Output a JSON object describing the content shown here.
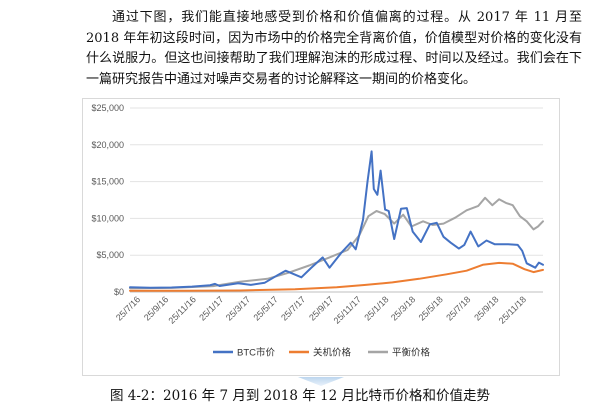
{
  "document": {
    "paragraph": "通过下图，我们能直接地感受到价格和价值偏离的过程。从 2017 年 11 月至 2018 年年初这段时间，因为市场中的价格完全背离价值，价值模型对价格的变化没有什么说服力。但这也间接帮助了我们理解泡沫的形成过程、时间以及经过。我们会在下一篇研究报告中通过对噪声交易者的讨论解释这一期间的价格变化。",
    "caption": "图 4-2：2016 年 7 月到 2018 年 12 月比特币价格和价值走势"
  },
  "chart_data": {
    "type": "line",
    "title": "",
    "xlabel": "",
    "ylabel": "",
    "ylim": [
      0,
      25000
    ],
    "yticks": [
      "$0",
      "$5,000",
      "$10,000",
      "$15,000",
      "$20,000",
      "$25,000"
    ],
    "ytick_values": [
      0,
      5000,
      10000,
      15000,
      20000,
      25000
    ],
    "xticks": [
      "25/7/16",
      "25/9/16",
      "25/11/16",
      "25/1/17",
      "25/3/17",
      "25/5/17",
      "25/7/17",
      "25/9/17",
      "25/11/17",
      "25/1/18",
      "25/3/18",
      "25/5/18",
      "25/7/18",
      "25/9/18",
      "25/11/18"
    ],
    "x_range": [
      "2016-07-01",
      "2018-12-31"
    ],
    "grid": "horizontal",
    "legend": "bottom",
    "series": [
      {
        "name": "BTC市价",
        "color": "#4472c4",
        "points": [
          [
            "2016-07-01",
            650
          ],
          [
            "2016-08-15",
            590
          ],
          [
            "2016-10-01",
            610
          ],
          [
            "2016-11-15",
            730
          ],
          [
            "2016-12-25",
            930
          ],
          [
            "2017-01-05",
            1100
          ],
          [
            "2017-01-15",
            820
          ],
          [
            "2017-02-25",
            1180
          ],
          [
            "2017-03-25",
            960
          ],
          [
            "2017-04-25",
            1260
          ],
          [
            "2017-05-25",
            2350
          ],
          [
            "2017-06-10",
            2900
          ],
          [
            "2017-07-15",
            2000
          ],
          [
            "2017-08-05",
            3250
          ],
          [
            "2017-08-31",
            4700
          ],
          [
            "2017-09-15",
            3300
          ],
          [
            "2017-10-12",
            5400
          ],
          [
            "2017-11-01",
            6700
          ],
          [
            "2017-11-12",
            5800
          ],
          [
            "2017-11-28",
            9800
          ],
          [
            "2017-12-08",
            15000
          ],
          [
            "2017-12-17",
            19100
          ],
          [
            "2017-12-22",
            14000
          ],
          [
            "2017-12-30",
            13200
          ],
          [
            "2018-01-06",
            16500
          ],
          [
            "2018-01-16",
            11200
          ],
          [
            "2018-01-24",
            11000
          ],
          [
            "2018-02-05",
            7200
          ],
          [
            "2018-02-20",
            11300
          ],
          [
            "2018-03-05",
            11400
          ],
          [
            "2018-03-18",
            8200
          ],
          [
            "2018-04-05",
            6800
          ],
          [
            "2018-04-25",
            9200
          ],
          [
            "2018-05-10",
            9400
          ],
          [
            "2018-05-25",
            7500
          ],
          [
            "2018-06-10",
            6700
          ],
          [
            "2018-06-28",
            5900
          ],
          [
            "2018-07-10",
            6400
          ],
          [
            "2018-07-24",
            8200
          ],
          [
            "2018-08-10",
            6200
          ],
          [
            "2018-08-28",
            7000
          ],
          [
            "2018-09-15",
            6500
          ],
          [
            "2018-10-15",
            6500
          ],
          [
            "2018-11-05",
            6400
          ],
          [
            "2018-11-15",
            5600
          ],
          [
            "2018-11-25",
            3900
          ],
          [
            "2018-12-14",
            3300
          ],
          [
            "2018-12-22",
            4000
          ],
          [
            "2018-12-31",
            3700
          ]
        ]
      },
      {
        "name": "关机价格",
        "color": "#ed7d31",
        "points": [
          [
            "2016-07-01",
            180
          ],
          [
            "2016-11-01",
            160
          ],
          [
            "2017-03-01",
            200
          ],
          [
            "2017-07-01",
            380
          ],
          [
            "2017-10-01",
            650
          ],
          [
            "2017-12-01",
            950
          ],
          [
            "2018-02-01",
            1300
          ],
          [
            "2018-04-01",
            1800
          ],
          [
            "2018-06-01",
            2400
          ],
          [
            "2018-07-15",
            2900
          ],
          [
            "2018-08-20",
            3700
          ],
          [
            "2018-09-25",
            3950
          ],
          [
            "2018-10-25",
            3850
          ],
          [
            "2018-11-20",
            3100
          ],
          [
            "2018-12-10",
            2700
          ],
          [
            "2018-12-31",
            3000
          ]
        ]
      },
      {
        "name": "平衡价格",
        "color": "#a5a5a5",
        "points": [
          [
            "2016-07-01",
            500
          ],
          [
            "2016-10-01",
            560
          ],
          [
            "2017-01-01",
            800
          ],
          [
            "2017-03-01",
            1400
          ],
          [
            "2017-05-01",
            1800
          ],
          [
            "2017-06-15",
            2600
          ],
          [
            "2017-08-01",
            3600
          ],
          [
            "2017-09-15",
            4700
          ],
          [
            "2017-10-25",
            5700
          ],
          [
            "2017-11-20",
            7700
          ],
          [
            "2017-12-10",
            10300
          ],
          [
            "2017-12-28",
            11000
          ],
          [
            "2018-01-15",
            10600
          ],
          [
            "2018-02-05",
            9300
          ],
          [
            "2018-02-25",
            10500
          ],
          [
            "2018-03-15",
            8900
          ],
          [
            "2018-04-10",
            9600
          ],
          [
            "2018-05-01",
            9100
          ],
          [
            "2018-05-25",
            9300
          ],
          [
            "2018-06-20",
            10100
          ],
          [
            "2018-07-15",
            11100
          ],
          [
            "2018-08-10",
            11700
          ],
          [
            "2018-08-25",
            12800
          ],
          [
            "2018-09-10",
            11800
          ],
          [
            "2018-09-25",
            12600
          ],
          [
            "2018-10-10",
            12100
          ],
          [
            "2018-10-25",
            11800
          ],
          [
            "2018-11-10",
            10300
          ],
          [
            "2018-11-25",
            9600
          ],
          [
            "2018-12-10",
            8500
          ],
          [
            "2018-12-20",
            8900
          ],
          [
            "2018-12-31",
            9600
          ]
        ]
      }
    ]
  }
}
